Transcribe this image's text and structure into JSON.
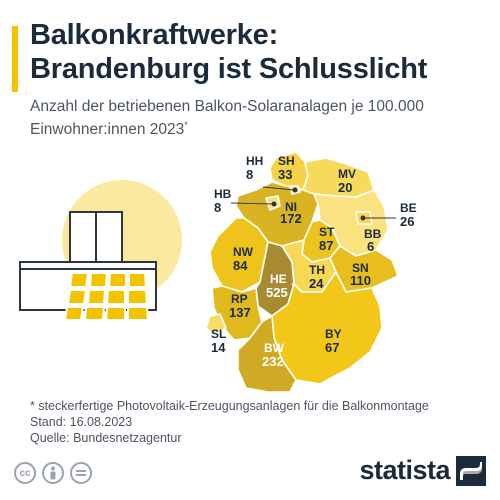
{
  "header": {
    "title_line1": "Balkonkraftwerke:",
    "title_line2": "Brandenburg ist Schlusslicht",
    "subtitle_main": "Anzahl der betriebenen Balkon-Solaranalagen je 100.000 Einwohner:innen 2023",
    "subtitle_mark": "*"
  },
  "colors": {
    "accent": "#f3c300",
    "dark_text": "#1c2b39",
    "scale_low": "#fdeeae",
    "scale_high": "#b89426"
  },
  "chart_data": {
    "type": "choropleth-map",
    "title": "Balkonkraftwerke: Brandenburg ist Schlusslicht",
    "subtitle": "Anzahl der betriebenen Balkon-Solaranalagen je 100.000 Einwohner:innen 2023*",
    "regions": [
      {
        "code": "SH",
        "value": 33
      },
      {
        "code": "HH",
        "value": 8
      },
      {
        "code": "MV",
        "value": 20
      },
      {
        "code": "HB",
        "value": 8
      },
      {
        "code": "NI",
        "value": 172
      },
      {
        "code": "BE",
        "value": 26
      },
      {
        "code": "BB",
        "value": 6
      },
      {
        "code": "ST",
        "value": 87
      },
      {
        "code": "NW",
        "value": 84
      },
      {
        "code": "SN",
        "value": 110
      },
      {
        "code": "TH",
        "value": 24
      },
      {
        "code": "HE",
        "value": 525
      },
      {
        "code": "RP",
        "value": 137
      },
      {
        "code": "SL",
        "value": 14
      },
      {
        "code": "BY",
        "value": 67
      },
      {
        "code": "BW",
        "value": 232
      }
    ]
  },
  "footer": {
    "note": "* steckerfertige Photovoltaik-Erzeugungsanlagen für die Balkonmontage",
    "date": "Stand: 16.08.2023",
    "source": "Quelle: Bundesnetzagentur",
    "brand": "statista"
  },
  "icons": [
    "creative-commons-icon",
    "attribution-icon",
    "no-derivatives-icon",
    "sun-illustration",
    "balcony-illustration",
    "statista-logo-icon"
  ]
}
